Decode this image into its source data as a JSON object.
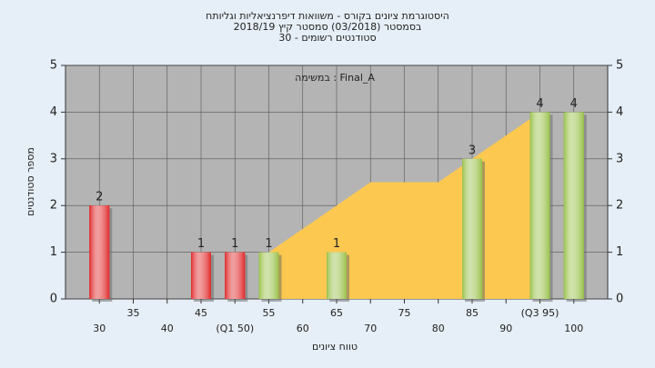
{
  "chart_data": {
    "type": "bar",
    "title": [
      "היסטוגרמת ציונים בקורס - משוואות דיפרנציאליות וגליותח",
      "בסמסטר  (03/2018)  סמסטר קיץ  2018/19",
      "סטודנטים רשומים - 30"
    ],
    "annotation": "במשימה : Final_A",
    "x_label": "טווח ציונים",
    "y_label": "מספר סטודנטים",
    "categories": [
      "30",
      "35",
      "40",
      "45",
      "(Q1 50)",
      "55",
      "60",
      "65",
      "70",
      "75",
      "80",
      "85",
      "90",
      "(Q3 95)",
      "100"
    ],
    "values": [
      2,
      0,
      0,
      1,
      1,
      1,
      0,
      1,
      0,
      0,
      0,
      3,
      0,
      4,
      4
    ],
    "colors": [
      "#e02828",
      "#e02828",
      "#e02828",
      "#e02828",
      "#e02828",
      "#98c048",
      "#98c048",
      "#98c048",
      "#98c048",
      "#98c048",
      "#98c048",
      "#98c048",
      "#98c048",
      "#98c048",
      "#98c048"
    ],
    "area": {
      "color": "#fcc850",
      "values": [
        null,
        null,
        null,
        null,
        null,
        1,
        1.5,
        2,
        2.5,
        2.5,
        2.5,
        3,
        3.5,
        4,
        null
      ]
    },
    "ylim": [
      0,
      5
    ],
    "yticks": [
      0,
      1,
      2,
      3,
      4,
      5
    ],
    "y2ticks": [
      0,
      1,
      2,
      3,
      4,
      5
    ],
    "grid": true
  }
}
